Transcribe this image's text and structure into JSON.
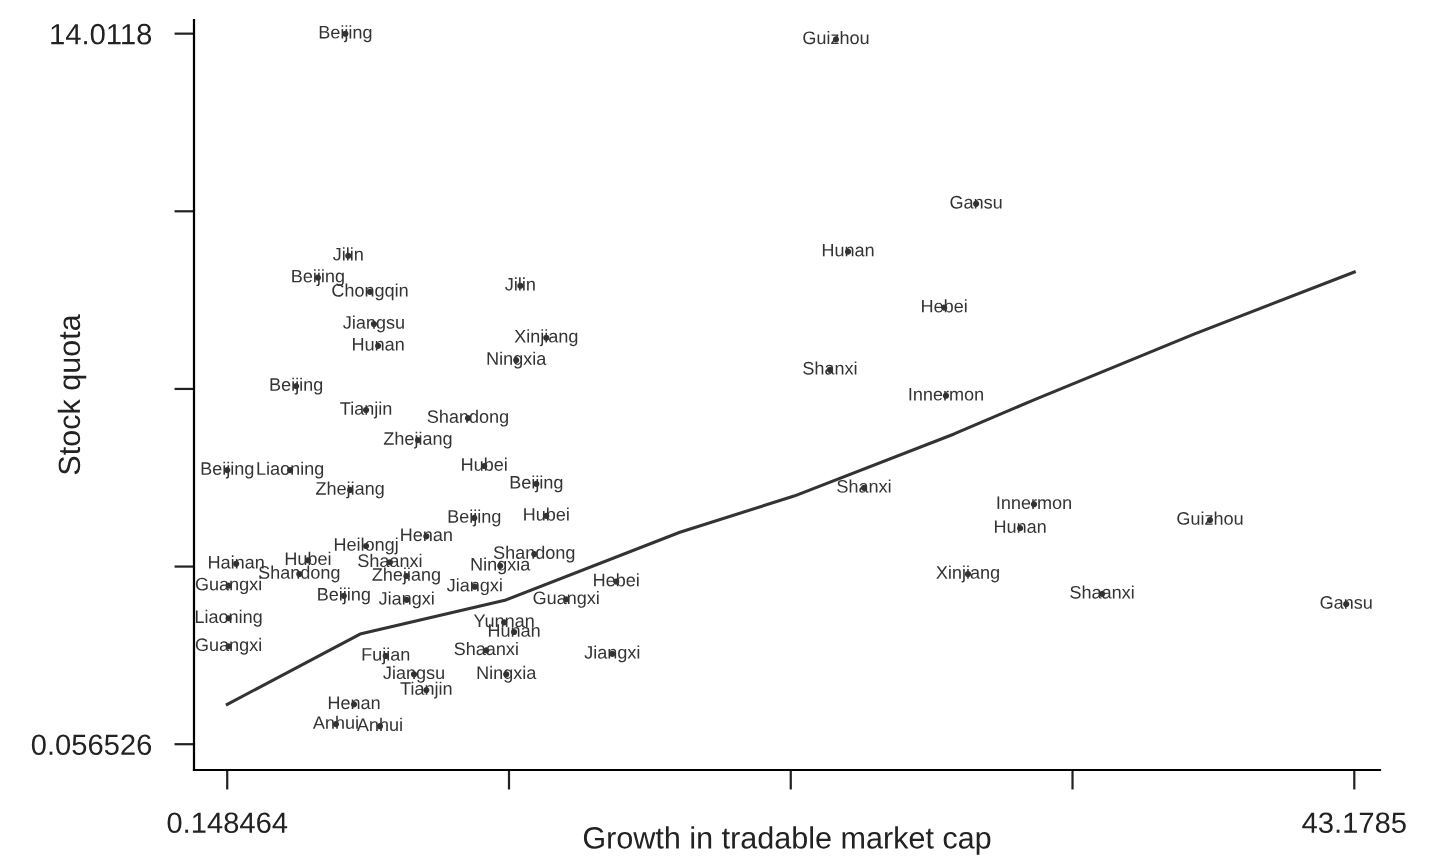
{
  "chart_data": {
    "type": "scatter",
    "xlabel": "Growth in tradable market cap",
    "ylabel": "Stock quota",
    "xlim": [
      -1.12,
      44.16
    ],
    "ylim": [
      -0.45,
      14.28
    ],
    "xticks": [
      0.148464,
      {
        "value": 10.905973,
        "label": null
      },
      {
        "value": 21.663482,
        "label": null
      },
      {
        "value": 32.420991,
        "label": null
      },
      43.1785
    ],
    "yticks": [
      0.056526,
      {
        "value": 3.545345,
        "label": null
      },
      {
        "value": 7.034163,
        "label": null
      },
      {
        "value": 10.52298,
        "label": null
      },
      14.0118
    ],
    "grid": false,
    "legend": false,
    "series": [
      {
        "color": "#333333",
        "x": [
          4.66,
          23.39,
          4.77,
          3.61,
          5.6,
          11.34,
          5.75,
          5.91,
          12.33,
          11.18,
          2.78,
          28.74,
          23.85,
          27.52,
          23.16,
          27.59,
          24.46,
          30.95,
          30.42,
          37.67,
          28.43,
          33.55,
          42.87,
          5.45,
          9.34,
          7.43,
          0.15,
          2.55,
          4.84,
          9.96,
          11.95,
          9.58,
          12.33,
          7.75,
          5.45,
          3.23,
          6.36,
          11.87,
          10.57,
          15.0,
          13.09,
          9.6,
          14.85,
          0.49,
          0.2,
          0.2,
          0.2,
          10.04,
          10.8,
          7.75,
          5.98,
          4.3,
          4.99,
          10.72,
          11.1,
          2.9,
          6.99,
          4.6,
          7.0,
          6.2,
          7.28
        ],
        "values": [
          14.01,
          13.9,
          9.65,
          9.22,
          8.94,
          9.06,
          8.31,
          7.88,
          8.04,
          7.6,
          7.09,
          10.67,
          9.73,
          8.63,
          7.41,
          6.9,
          5.09,
          4.77,
          4.3,
          4.46,
          3.4,
          3.01,
          2.81,
          6.62,
          6.46,
          6.03,
          5.44,
          5.44,
          5.05,
          5.52,
          5.17,
          4.5,
          4.54,
          4.14,
          3.95,
          3.67,
          3.63,
          3.79,
          3.56,
          3.25,
          2.9,
          3.15,
          1.83,
          3.6,
          3.17,
          2.53,
          1.98,
          1.9,
          1.43,
          1.12,
          0.41,
          0.45,
          0.84,
          2.45,
          2.26,
          3.4,
          3.36,
          2.97,
          2.89,
          1.79,
          1.43
        ],
        "value_labels": [
          "Beijing",
          "Guizhou",
          "Jilin",
          "Beijing",
          "Chongqin",
          "Jilin",
          "Jiangsu",
          "Hunan",
          "Xinjiang",
          "Ningxia",
          "Beijing",
          "Gansu",
          "Hunan",
          "Hebei",
          "Shanxi",
          "Innermon",
          "Shanxi",
          "Innermon",
          "Hunan",
          "Guizhou",
          "Xinjiang",
          "Shaanxi",
          "Gansu",
          "Tianjin",
          "Shandong",
          "Zhejiang",
          "Beijing",
          "Liaoning",
          "Zhejiang",
          "Hubei",
          "Beijing",
          "Beijing",
          "Hubei",
          "Henan",
          "Heilongj",
          "Hubei",
          "Shaanxi",
          "Shandong",
          "Ningxia",
          "Hebei",
          "Guangxi",
          "Jiangxi",
          "Jiangxi",
          "Hainan",
          "Guangxi",
          "Liaoning",
          "Guangxi",
          "Shaanxi",
          "Ningxia",
          "Tianjin",
          "Anhui",
          "Anhui",
          "Henan",
          "Yunnan",
          "Hunan",
          "Shandong",
          "Zhejiang",
          "Beijing",
          "Jiangxi",
          "Fujian",
          "Jiangsu"
        ]
      },
      {
        "type": "line",
        "color": "#333333",
        "x": [
          0.15,
          5.22,
          10.79,
          17.43,
          21.79,
          27.9,
          30.95,
          37.06,
          43.1785
        ],
        "values": [
          0.84,
          2.22,
          2.89,
          4.22,
          4.93,
          6.15,
          6.82,
          8.11,
          9.33
        ]
      }
    ]
  }
}
